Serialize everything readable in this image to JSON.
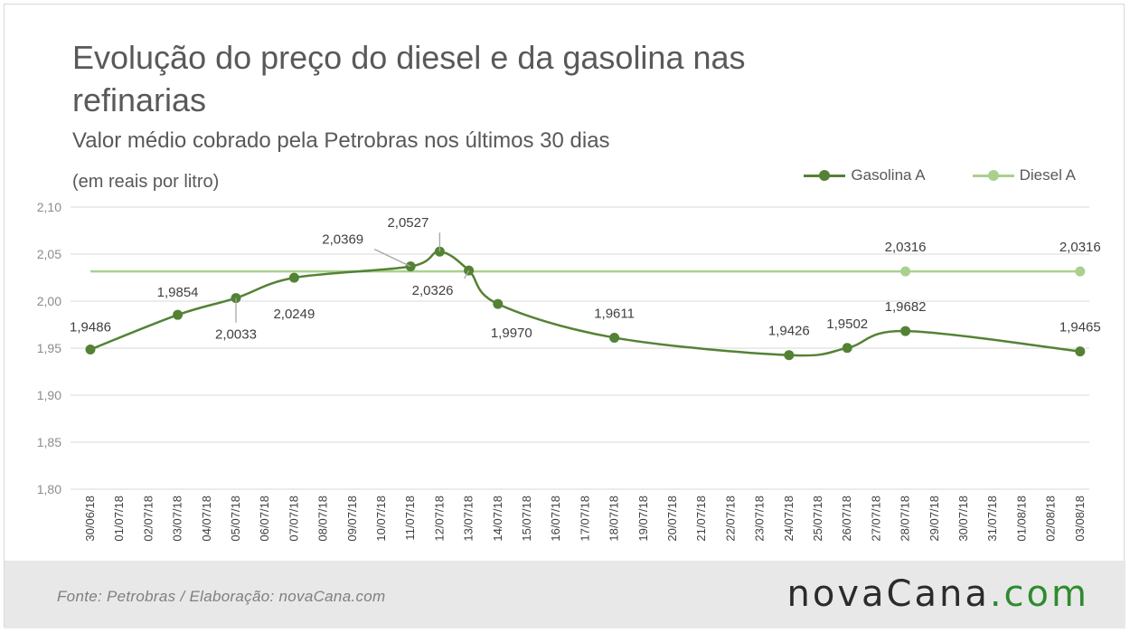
{
  "title": "Evolução do preço do diesel e da gasolina nas refinarias",
  "subtitle": "Valor médio cobrado pela Petrobras nos últimos 30 dias",
  "unit_note": "(em reais por litro)",
  "source": "Fonte: Petrobras / Elaboração: novaCana.com",
  "logo": {
    "main": "novaCana",
    "suffix": ".com"
  },
  "colors": {
    "gasolina": "#548235",
    "diesel": "#a9d18e",
    "grid": "#d9d9d9",
    "text": "#595959"
  },
  "chart_data": {
    "type": "line",
    "categories": [
      "30/06/18",
      "01/07/18",
      "02/07/18",
      "03/07/18",
      "04/07/18",
      "05/07/18",
      "06/07/18",
      "07/07/18",
      "08/07/18",
      "09/07/18",
      "10/07/18",
      "11/07/18",
      "12/07/18",
      "13/07/18",
      "14/07/18",
      "15/07/18",
      "16/07/18",
      "17/07/18",
      "18/07/18",
      "19/07/18",
      "20/07/18",
      "21/07/18",
      "22/07/18",
      "23/07/18",
      "24/07/18",
      "25/07/18",
      "26/07/18",
      "27/07/18",
      "28/07/18",
      "29/07/18",
      "30/07/18",
      "31/07/18",
      "01/08/18",
      "02/08/18",
      "03/08/18"
    ],
    "ylim": [
      1.8,
      2.1
    ],
    "yticks": [
      "1,80",
      "1,85",
      "1,90",
      "1,95",
      "2,00",
      "2,05",
      "2,10"
    ],
    "legend_position": "top-right",
    "series": [
      {
        "name": "Gasolina A",
        "points": [
          {
            "x": "30/06/18",
            "y": 1.9486,
            "label": "1,9486"
          },
          {
            "x": "03/07/18",
            "y": 1.9854,
            "label": "1,9854"
          },
          {
            "x": "05/07/18",
            "y": 2.0033,
            "label": "2,0033"
          },
          {
            "x": "07/07/18",
            "y": 2.0249,
            "label": "2,0249"
          },
          {
            "x": "11/07/18",
            "y": 2.0369,
            "label": "2,0369"
          },
          {
            "x": "12/07/18",
            "y": 2.0527,
            "label": "2,0527"
          },
          {
            "x": "13/07/18",
            "y": 2.0326,
            "label": "2,0326"
          },
          {
            "x": "14/07/18",
            "y": 1.997,
            "label": "1,9970"
          },
          {
            "x": "18/07/18",
            "y": 1.9611,
            "label": "1,9611"
          },
          {
            "x": "24/07/18",
            "y": 1.9426,
            "label": "1,9426"
          },
          {
            "x": "26/07/18",
            "y": 1.9502,
            "label": "1,9502"
          },
          {
            "x": "28/07/18",
            "y": 1.9682,
            "label": "1,9682"
          },
          {
            "x": "03/08/18",
            "y": 1.9465,
            "label": "1,9465"
          }
        ]
      },
      {
        "name": "Diesel A",
        "points": [
          {
            "x": "30/06/18",
            "y": 2.0316,
            "label": ""
          },
          {
            "x": "28/07/18",
            "y": 2.0316,
            "label": "2,0316"
          },
          {
            "x": "03/08/18",
            "y": 2.0316,
            "label": "2,0316"
          }
        ]
      }
    ]
  }
}
